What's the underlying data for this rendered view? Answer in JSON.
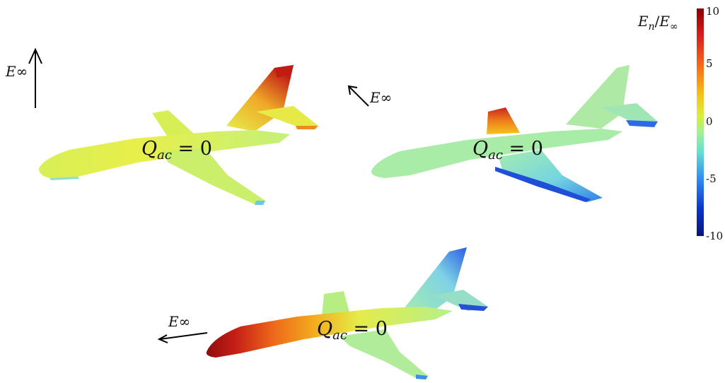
{
  "panels": [
    {
      "id": "top-left",
      "field_label": "E∞",
      "field_direction": "up",
      "charge_label_main": "Q",
      "charge_label_sub": "ac",
      "charge_label_rest": " = 0"
    },
    {
      "id": "top-right",
      "field_label": "E∞",
      "field_direction": "up-left",
      "charge_label_main": "Q",
      "charge_label_sub": "ac",
      "charge_label_rest": " = 0"
    },
    {
      "id": "bottom",
      "field_label": "E∞",
      "field_direction": "left",
      "charge_label_main": "Q",
      "charge_label_sub": "ac",
      "charge_label_rest": " = 0"
    }
  ],
  "colorbar": {
    "title_num_main": "E",
    "title_num_sub": "n",
    "title_sep": "/",
    "title_den_main": "E",
    "title_den_sub": "∞",
    "ticks": [
      "10",
      "5",
      "0",
      "-5",
      "-10"
    ],
    "colormap": "jet",
    "colors": [
      "#8b0000",
      "#d71f1f",
      "#f56a1a",
      "#f5c21b",
      "#d9ee3a",
      "#9ef09a",
      "#63e0d0",
      "#2f8cf0",
      "#0a35c8",
      "#06157a"
    ]
  },
  "surface_colors": {
    "neutral": "#b9f07c",
    "neutral_light": "#a6ecae",
    "yellow": "#e3f057",
    "orange": "#f08a20",
    "red": "#c21a14",
    "dark_red": "#8e0d0d",
    "blue": "#1f5fe0",
    "dark_blue": "#0b1f9a",
    "light_blue": "#5fc4f0"
  }
}
